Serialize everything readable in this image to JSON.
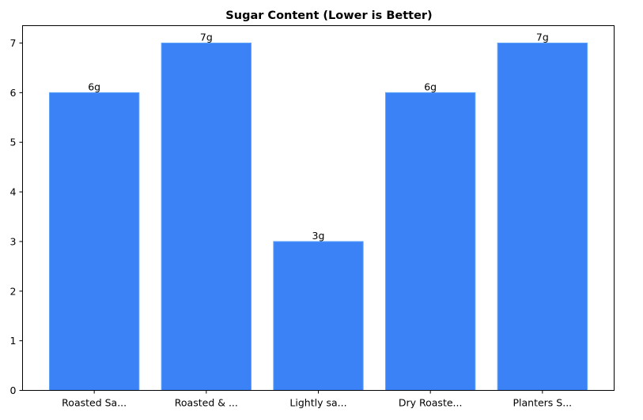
{
  "chart_data": {
    "type": "bar",
    "title": "Sugar Content (Lower is Better)",
    "xlabel": "",
    "ylabel": "",
    "categories": [
      "Roasted Sa...",
      "Roasted & ...",
      "Lightly sa...",
      "Dry Roaste...",
      "Planters S..."
    ],
    "values": [
      6,
      7,
      3,
      6,
      7
    ],
    "data_labels": [
      "6g",
      "7g",
      "3g",
      "6g",
      "7g"
    ],
    "ylim": [
      0,
      7.35
    ],
    "yticks": [
      0,
      1,
      2,
      3,
      4,
      5,
      6,
      7
    ],
    "grid": false,
    "bar_color": "#3b82f6",
    "bar_edge_color": "#60a5fa"
  }
}
